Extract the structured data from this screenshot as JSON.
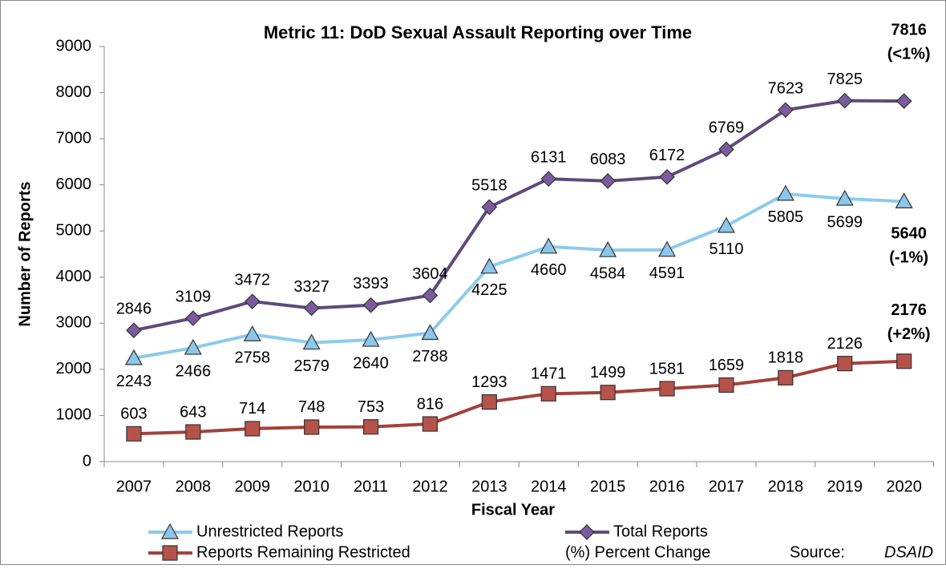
{
  "chart_data": {
    "type": "line",
    "title": "Metric 11: DoD Sexual Assault Reporting over Time",
    "x_label": "Fiscal Year",
    "y_label": "Number of Reports",
    "categories": [
      "2007",
      "2008",
      "2009",
      "2010",
      "2011",
      "2012",
      "2013",
      "2014",
      "2015",
      "2016",
      "2017",
      "2018",
      "2019",
      "2020"
    ],
    "ylim": [
      0,
      9000
    ],
    "yticks": [
      0,
      1000,
      2000,
      3000,
      4000,
      5000,
      6000,
      7000,
      8000,
      9000
    ],
    "series": [
      {
        "name": "Unrestricted Reports",
        "color": "#8ccbec",
        "marker": "triangle",
        "marker_color": "#8cc6ea",
        "values": [
          2243,
          2466,
          2758,
          2579,
          2640,
          2788,
          4225,
          4660,
          4584,
          4591,
          5110,
          5805,
          5699,
          5640
        ],
        "change_label": "(-1%)"
      },
      {
        "name": "Total Reports",
        "color": "#60497a",
        "marker": "diamond",
        "marker_color": "#7a5c9e",
        "values": [
          2846,
          3109,
          3472,
          3327,
          3393,
          3604,
          5518,
          6131,
          6083,
          6172,
          6769,
          7623,
          7825,
          7816
        ],
        "change_label": "(<1%)"
      },
      {
        "name": "Reports Remaining Restricted",
        "color": "#a2413b",
        "marker": "square",
        "marker_color": "#b5524a",
        "values": [
          603,
          643,
          714,
          748,
          753,
          816,
          1293,
          1471,
          1499,
          1581,
          1659,
          1818,
          2126,
          2176
        ],
        "change_label": "(+2%)"
      }
    ],
    "change_legend": "(%)  Percent Change",
    "source_label": "Source:",
    "source": "DSAID"
  }
}
